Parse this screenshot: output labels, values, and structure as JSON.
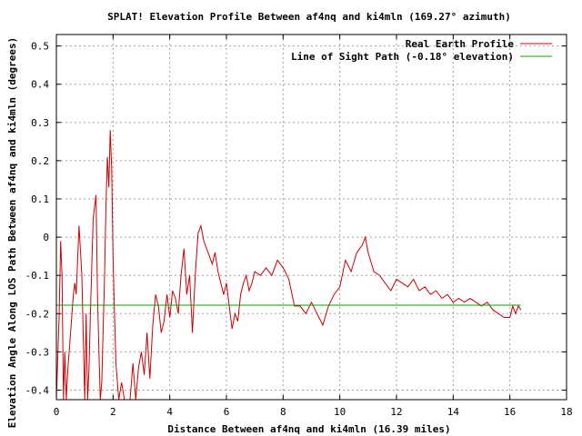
{
  "chart_data": {
    "type": "line",
    "title": "SPLAT! Elevation Profile Between af4nq and ki4mln (169.27° azimuth)",
    "xlabel": "Distance Between af4nq and ki4mln (16.39 miles)",
    "ylabel": "Elevation Angle Along LOS Path Between af4nq and ki4mln (degrees)",
    "xlim": [
      0,
      18
    ],
    "ylim": [
      -0.425,
      0.53
    ],
    "x_ticks": [
      "0",
      "2",
      "4",
      "6",
      "8",
      "10",
      "12",
      "14",
      "16",
      "18"
    ],
    "y_ticks": [
      "0.5",
      "0.4",
      "0.3",
      "0.2",
      "0.1",
      "0",
      "-0.1",
      "-0.2",
      "-0.3",
      "-0.4"
    ],
    "grid": true,
    "legend_position": "top-right",
    "colors": {
      "profile": "#cc0000",
      "los": "#00a000",
      "grid": "#a0a0a0",
      "axis": "#000000"
    },
    "series": [
      {
        "name": "Real Earth Profile",
        "x": [
          0,
          0.1,
          0.15,
          0.2,
          0.25,
          0.3,
          0.35,
          0.4,
          0.5,
          0.6,
          0.65,
          0.7,
          0.8,
          0.9,
          1.0,
          1.05,
          1.1,
          1.15,
          1.2,
          1.3,
          1.4,
          1.45,
          1.5,
          1.55,
          1.6,
          1.7,
          1.75,
          1.8,
          1.85,
          1.9,
          1.95,
          2.0,
          2.05,
          2.1,
          2.2,
          2.3,
          2.4,
          2.5,
          2.6,
          2.7,
          2.8,
          2.9,
          3.0,
          3.1,
          3.2,
          3.3,
          3.4,
          3.5,
          3.6,
          3.7,
          3.8,
          3.9,
          4.0,
          4.1,
          4.2,
          4.3,
          4.4,
          4.5,
          4.6,
          4.7,
          4.8,
          4.9,
          5.0,
          5.1,
          5.2,
          5.3,
          5.4,
          5.5,
          5.6,
          5.7,
          5.8,
          5.9,
          6.0,
          6.1,
          6.2,
          6.3,
          6.4,
          6.5,
          6.6,
          6.7,
          6.8,
          6.9,
          7.0,
          7.2,
          7.4,
          7.6,
          7.8,
          8.0,
          8.2,
          8.4,
          8.6,
          8.8,
          9.0,
          9.2,
          9.4,
          9.6,
          9.8,
          10.0,
          10.2,
          10.4,
          10.6,
          10.8,
          10.9,
          11.0,
          11.2,
          11.4,
          11.6,
          11.8,
          12.0,
          12.2,
          12.4,
          12.6,
          12.8,
          13.0,
          13.2,
          13.4,
          13.6,
          13.8,
          14.0,
          14.2,
          14.4,
          14.6,
          14.8,
          15.0,
          15.2,
          15.4,
          15.6,
          15.8,
          16.0,
          16.1,
          16.2,
          16.3,
          16.39
        ],
        "y": [
          -0.43,
          -0.2,
          -0.01,
          -0.1,
          -0.43,
          -0.3,
          -0.43,
          -0.35,
          -0.25,
          -0.15,
          -0.12,
          -0.15,
          0.03,
          -0.1,
          -0.43,
          -0.2,
          -0.43,
          -0.35,
          -0.2,
          0.05,
          0.11,
          -0.15,
          -0.3,
          -0.43,
          -0.38,
          -0.1,
          0.08,
          0.21,
          0.13,
          0.28,
          0.18,
          -0.05,
          -0.2,
          -0.33,
          -0.43,
          -0.38,
          -0.43,
          -0.43,
          -0.43,
          -0.33,
          -0.43,
          -0.34,
          -0.3,
          -0.36,
          -0.25,
          -0.37,
          -0.23,
          -0.15,
          -0.18,
          -0.25,
          -0.22,
          -0.15,
          -0.21,
          -0.14,
          -0.16,
          -0.2,
          -0.1,
          -0.03,
          -0.15,
          -0.1,
          -0.25,
          -0.1,
          0.01,
          0.03,
          -0.01,
          -0.03,
          -0.05,
          -0.07,
          -0.04,
          -0.09,
          -0.12,
          -0.15,
          -0.12,
          -0.18,
          -0.24,
          -0.2,
          -0.22,
          -0.15,
          -0.12,
          -0.1,
          -0.14,
          -0.12,
          -0.09,
          -0.1,
          -0.08,
          -0.1,
          -0.06,
          -0.08,
          -0.11,
          -0.18,
          -0.18,
          -0.2,
          -0.17,
          -0.2,
          -0.23,
          -0.18,
          -0.15,
          -0.13,
          -0.06,
          -0.09,
          -0.04,
          -0.02,
          0.0,
          -0.04,
          -0.09,
          -0.1,
          -0.12,
          -0.14,
          -0.11,
          -0.12,
          -0.13,
          -0.11,
          -0.14,
          -0.13,
          -0.15,
          -0.14,
          -0.16,
          -0.15,
          -0.17,
          -0.16,
          -0.17,
          -0.16,
          -0.17,
          -0.18,
          -0.17,
          -0.19,
          -0.2,
          -0.21,
          -0.21,
          -0.18,
          -0.2,
          -0.18,
          -0.19
        ]
      },
      {
        "name": "Line of Sight Path (-0.18° elevation)",
        "x": [
          0,
          16.39
        ],
        "y": [
          -0.178,
          -0.178
        ]
      }
    ]
  }
}
